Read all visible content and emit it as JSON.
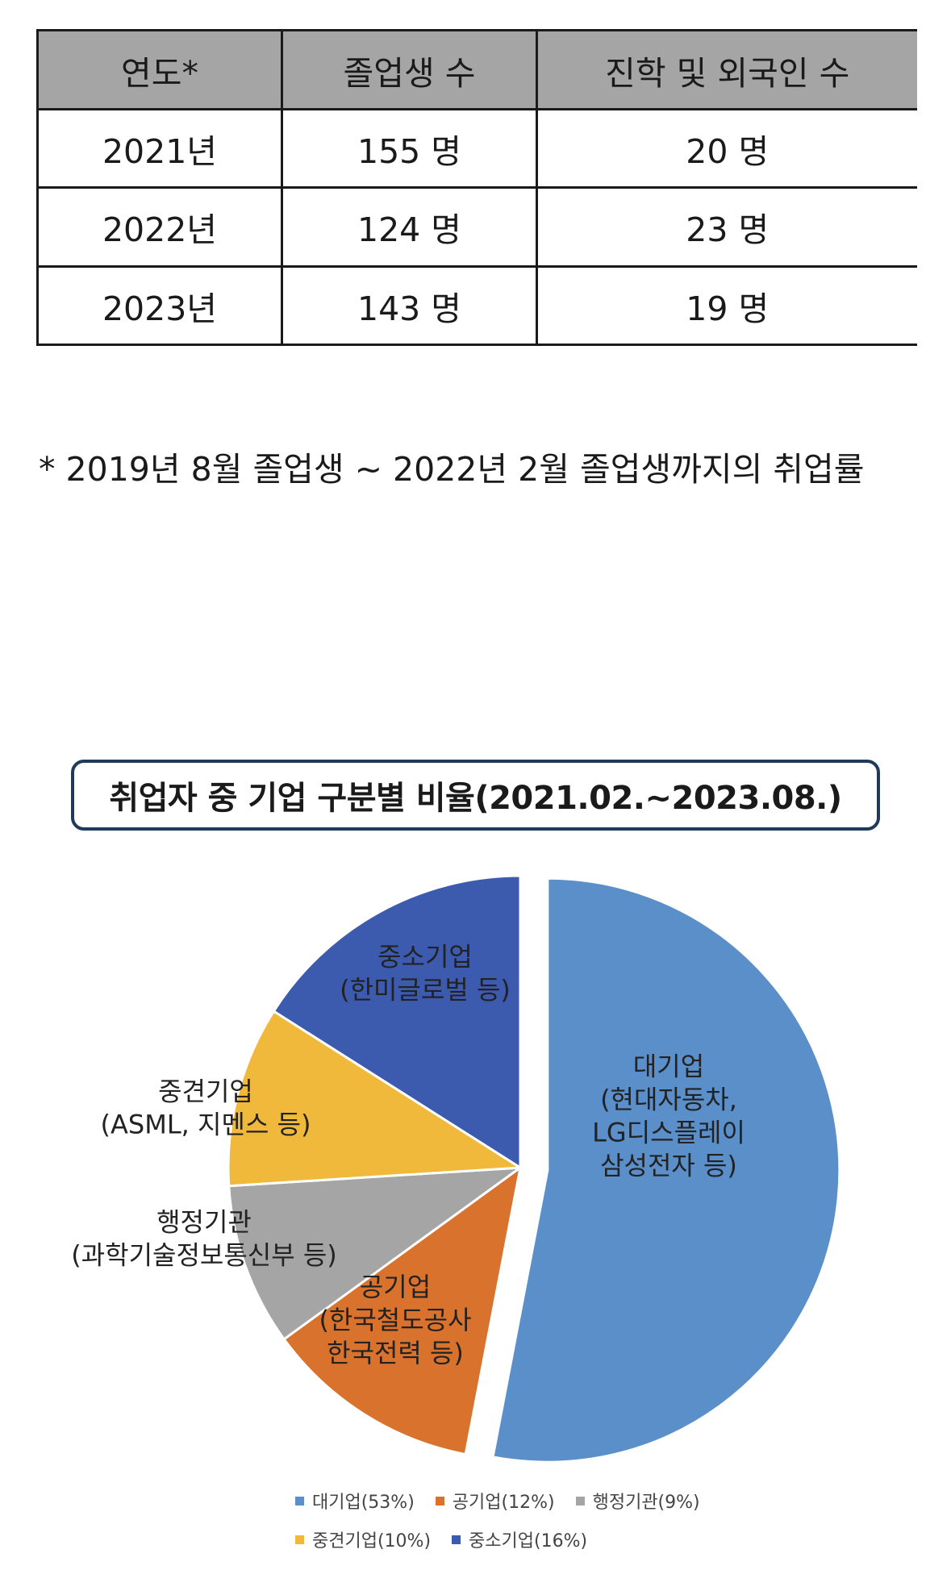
{
  "table": {
    "headers": [
      "연도*",
      "졸업생 수",
      "진학 및 외국인 수"
    ],
    "rows": [
      [
        "2021년",
        "155 명",
        "20 명"
      ],
      [
        "2022년",
        "124 명",
        "23 명"
      ],
      [
        "2023년",
        "143 명",
        "19 명"
      ]
    ]
  },
  "footnote": "* 2019년 8월 졸업생 ~ 2022년 2월 졸업생까지의 취업률",
  "chart_data": {
    "type": "pie",
    "title": "취업자 중 기업 구분별 비율(2021.02.~2023.08.)",
    "legend_position": "bottom",
    "slices": [
      {
        "name": "대기업",
        "value": 53,
        "legend": "대기업(53%)",
        "color": "#5B8FCA",
        "label": [
          "대기업",
          "(현대자동차,",
          "LG디스플레이",
          "삼성전자 등)"
        ],
        "exploded": true
      },
      {
        "name": "공기업",
        "value": 12,
        "legend": "공기업(12%)",
        "color": "#D8722D",
        "label": [
          "공기업",
          "(한국철도공사",
          "한국전력 등)"
        ],
        "exploded": false
      },
      {
        "name": "행정기관",
        "value": 9,
        "legend": "행정기관(9%)",
        "color": "#A5A5A5",
        "label": [
          "행정기관",
          "(과학기술정보통신부 등)"
        ],
        "exploded": false
      },
      {
        "name": "중견기업",
        "value": 10,
        "legend": "중견기업(10%)",
        "color": "#F1B93B",
        "label": [
          "중견기업",
          "(ASML, 지멘스 등)"
        ],
        "exploded": false
      },
      {
        "name": "중소기업",
        "value": 16,
        "legend": "중소기업(16%)",
        "color": "#3C5AAE",
        "label": [
          "중소기업",
          "(한미글로벌 등)"
        ],
        "exploded": false
      }
    ]
  }
}
